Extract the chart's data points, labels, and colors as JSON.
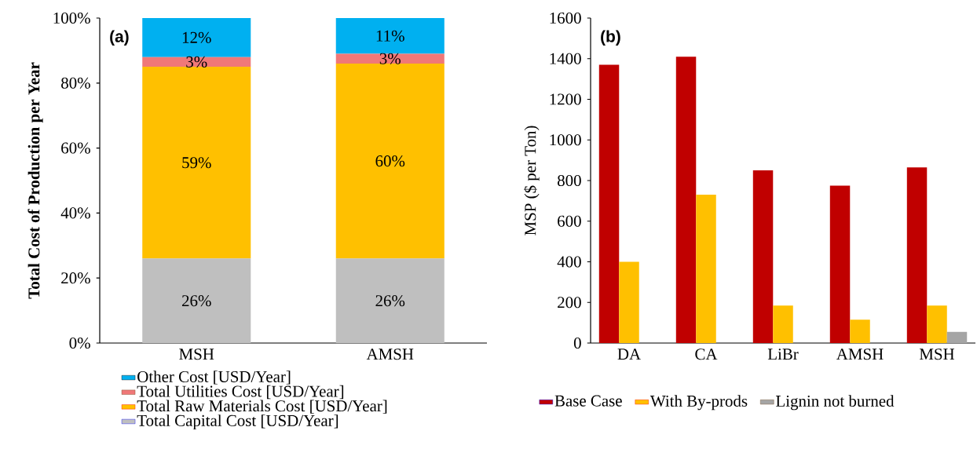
{
  "chart_data": [
    {
      "type": "bar",
      "stacked": true,
      "title": "(a)",
      "ylabel": "Total Cost of Production per Year",
      "categories": [
        "MSH",
        "AMSH"
      ],
      "ylim": [
        0,
        100
      ],
      "yticks": [
        {
          "value": 0,
          "label": "0%"
        },
        {
          "value": 20,
          "label": "20%"
        },
        {
          "value": 40,
          "label": "40%"
        },
        {
          "value": 60,
          "label": "60%"
        },
        {
          "value": 80,
          "label": "80%"
        },
        {
          "value": 100,
          "label": "100%"
        }
      ],
      "legend": "bottom",
      "series": [
        {
          "name": "Total Capital Cost [USD/Year]",
          "color": "#bfbfbf",
          "values": [
            26,
            26
          ],
          "value_labels": [
            "26%",
            "26%"
          ]
        },
        {
          "name": "Total Raw Materials Cost [USD/Year]",
          "color": "#ffc000",
          "values": [
            59,
            60
          ],
          "value_labels": [
            "59%",
            "60%"
          ]
        },
        {
          "name": "Total Utilities Cost [USD/Year]",
          "color": "#f07878",
          "values": [
            3,
            3
          ],
          "value_labels": [
            "3%",
            "3%"
          ]
        },
        {
          "name": "Other Cost [USD/Year]",
          "color": "#00b0f0",
          "values": [
            12,
            11
          ],
          "value_labels": [
            "12%",
            "11%"
          ]
        }
      ]
    },
    {
      "type": "bar",
      "title": "(b)",
      "ylabel": "MSP ($ per Ton)",
      "categories": [
        "DA",
        "CA",
        "LiBr",
        "AMSH",
        "MSH"
      ],
      "ylim": [
        0,
        1600
      ],
      "yticks": [
        0,
        200,
        400,
        600,
        800,
        1000,
        1200,
        1400,
        1600
      ],
      "legend": "bottom",
      "series": [
        {
          "name": "Base Case",
          "color": "#c00000",
          "values": [
            1370,
            1410,
            850,
            775,
            865
          ]
        },
        {
          "name": "With By-prods",
          "color": "#ffc000",
          "values": [
            400,
            730,
            185,
            115,
            185
          ]
        },
        {
          "name": "Lignin not burned",
          "color": "#a5a5a5",
          "values": [
            null,
            null,
            null,
            null,
            55
          ]
        }
      ]
    }
  ]
}
